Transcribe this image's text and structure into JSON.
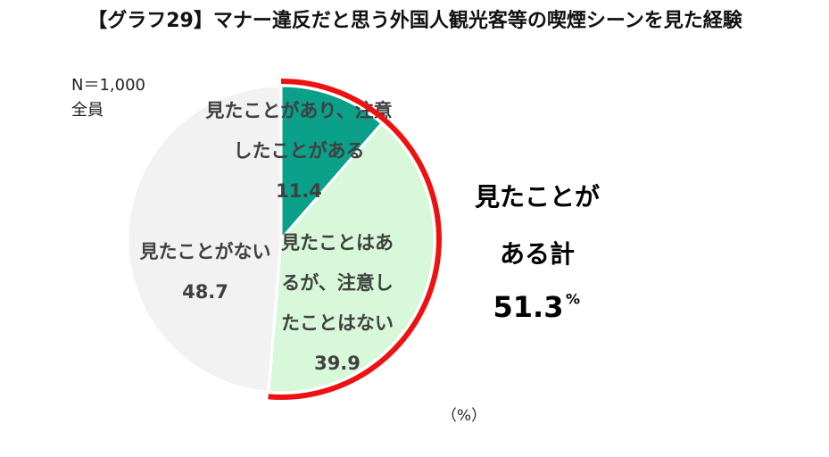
{
  "chart_data": {
    "type": "pie",
    "title": "【グラフ29】マナー違反だと思う外国人観光客等の喫煙シーンを見た経験",
    "sample": "N＝1,000",
    "subgroup": "全員",
    "unit_note": "（%）",
    "slices": [
      {
        "lines": [
          "見たことがあり、注意",
          "したことがある"
        ],
        "value": 11.4,
        "color": "#0aa08a"
      },
      {
        "lines": [
          "見たことはあ",
          "るが、注意し",
          "たことはない"
        ],
        "value": 39.9,
        "color": "#d8f8da"
      },
      {
        "lines": [
          "見たことがない"
        ],
        "value": 48.7,
        "color": "#f2f2f2"
      }
    ],
    "total": {
      "lines": [
        "見たことが",
        "ある計"
      ],
      "value": 51.3,
      "unit": "%",
      "color": "#ee1111"
    }
  }
}
